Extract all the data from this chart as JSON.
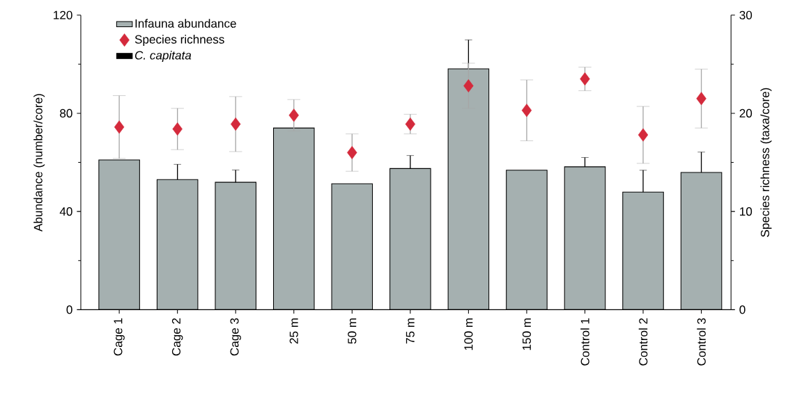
{
  "chart_data": {
    "type": "bar",
    "categories": [
      "Cage 1",
      "Cage 2",
      "Cage 3",
      "25 m",
      "50 m",
      "75 m",
      "100 m",
      "150 m",
      "Control 1",
      "Control 2",
      "Control 3"
    ],
    "ylabel": "Abundance (number/core)",
    "y2label": "Species richness (taxa/core)",
    "ylim": [
      0,
      120
    ],
    "yticks": [
      0,
      40,
      80,
      120
    ],
    "y2lim": [
      0,
      30
    ],
    "y2ticks": [
      0,
      10,
      20,
      30
    ],
    "legend": "top left",
    "series": [
      {
        "name": "Infauna abundance",
        "color": "#a5b0b0",
        "values": [
          61.0,
          53.0,
          51.9,
          74.0,
          51.3,
          57.5,
          98.1,
          56.8,
          58.2,
          47.9,
          55.9
        ],
        "errors": [
          null,
          6.2,
          5.0,
          null,
          null,
          5.3,
          11.8,
          null,
          3.8,
          8.9,
          8.3
        ]
      },
      {
        "name": "Species richness",
        "type": "scatter",
        "axis": "y2",
        "marker": "diamond",
        "color": "#d42a3c",
        "values": [
          18.6,
          18.4,
          18.9,
          19.8,
          16.0,
          18.9,
          22.8,
          20.3,
          23.5,
          17.8,
          21.5
        ],
        "errors": [
          3.2,
          2.1,
          2.8,
          1.6,
          1.9,
          1.0,
          2.3,
          3.1,
          1.2,
          2.9,
          3.0
        ]
      },
      {
        "name": "*C. capitata*",
        "color": "#000000",
        "values": [
          0,
          0,
          0,
          0,
          0,
          0,
          0,
          0,
          0,
          0,
          0
        ]
      }
    ]
  }
}
